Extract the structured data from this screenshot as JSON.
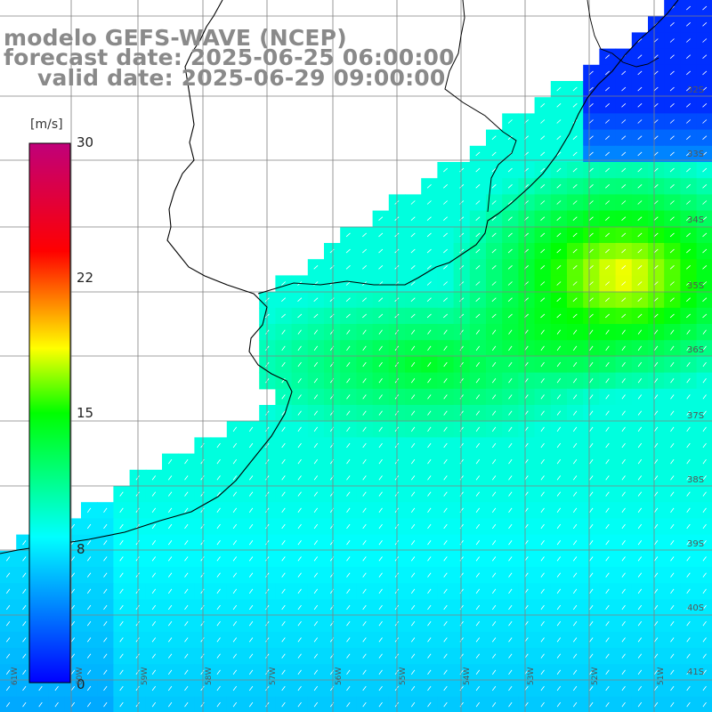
{
  "title": {
    "line1": "modelo GEFS-WAVE (NCEP)",
    "line2": "forecast date: 2025-06-25 06:00:00",
    "line3": "valid date: 2025-06-29 09:00:00"
  },
  "colorbar": {
    "unit": "[m/s]",
    "ticks": [
      "30",
      "22",
      "15",
      "8",
      "0"
    ],
    "min": 0,
    "max": 30,
    "colors": [
      "#0000ff",
      "#00ffff",
      "#00ff00",
      "#ffff00",
      "#ff0000",
      "#c0007a"
    ]
  },
  "lat_labels": [
    "32S",
    "33S",
    "34S",
    "35S",
    "36S",
    "37S",
    "38S",
    "39S",
    "40S",
    "41S"
  ],
  "lon_labels": [
    "61W",
    "60W",
    "59W",
    "58W",
    "57W",
    "56W",
    "55W",
    "54W",
    "53W",
    "52W",
    "51W"
  ],
  "colors": {
    "land": "#ffffff",
    "grid": "#808080",
    "coast": "#000000",
    "arrow": "#ffffff"
  }
}
